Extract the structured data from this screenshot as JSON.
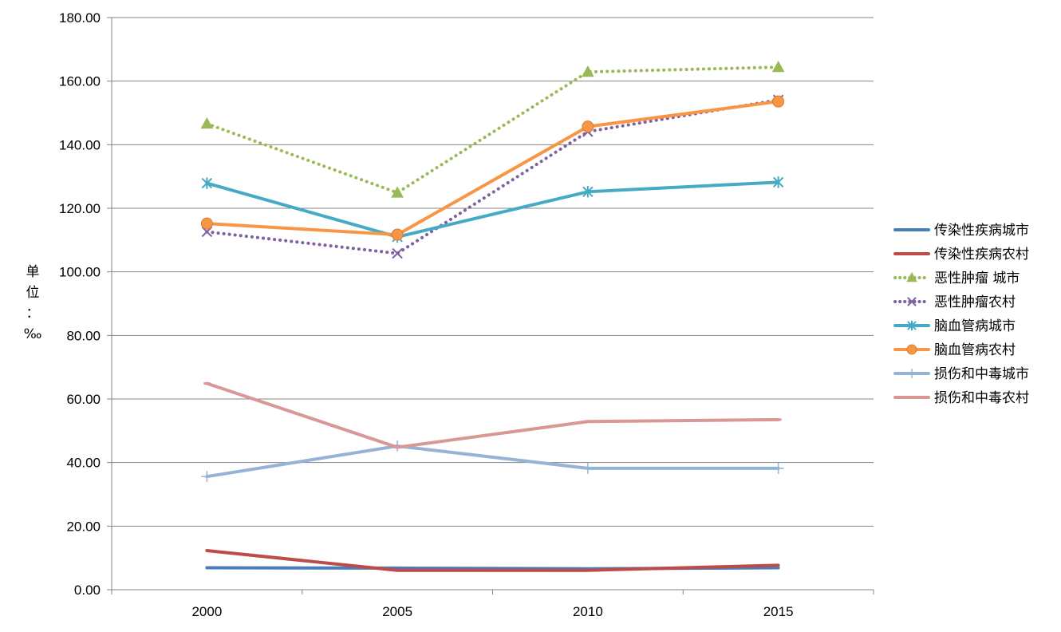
{
  "chart_data": {
    "type": "line",
    "title": "",
    "xlabel": "",
    "ylabel": "单位：‰",
    "ylabel_chars": [
      "单",
      "位",
      "：",
      "‰"
    ],
    "categories": [
      "2000",
      "2005",
      "2010",
      "2015"
    ],
    "ylim": [
      0,
      180
    ],
    "y_ticks": [
      "0.00",
      "20.00",
      "40.00",
      "60.00",
      "80.00",
      "100.00",
      "120.00",
      "140.00",
      "160.00",
      "180.00"
    ],
    "grid": true,
    "legend_position": "right",
    "series": [
      {
        "name": "传染性疾病城市",
        "values": [
          6.9,
          6.8,
          6.6,
          6.9
        ],
        "color": "#4a7ebb",
        "dash": "solid",
        "marker": "none"
      },
      {
        "name": "传染性疾病农村",
        "values": [
          12.3,
          6.1,
          6.1,
          7.7
        ],
        "color": "#be4b48",
        "dash": "solid",
        "marker": "none"
      },
      {
        "name": "恶性肿瘤 城市",
        "values": [
          146.6,
          124.9,
          162.9,
          164.4
        ],
        "color": "#98b954",
        "dash": "dotted",
        "marker": "triangle"
      },
      {
        "name": "恶性肿瘤农村",
        "values": [
          112.6,
          105.8,
          144.1,
          154.1
        ],
        "color": "#7d60a0",
        "dash": "dotted",
        "marker": "x"
      },
      {
        "name": "脑血管病城市",
        "values": [
          127.9,
          111.0,
          125.2,
          128.2
        ],
        "color": "#46aac5",
        "dash": "solid",
        "marker": "star"
      },
      {
        "name": "脑血管病农村",
        "values": [
          115.2,
          111.7,
          145.7,
          153.6
        ],
        "color": "#f79646",
        "dash": "solid",
        "marker": "circle"
      },
      {
        "name": "损伤和中毒城市",
        "values": [
          35.6,
          45.2,
          38.2,
          38.2
        ],
        "color": "#95b3d7",
        "dash": "solid",
        "marker": "plus"
      },
      {
        "name": "损伤和中毒农村",
        "values": [
          64.9,
          44.8,
          52.9,
          53.5
        ],
        "color": "#d99795",
        "dash": "solid",
        "marker": "dash"
      }
    ]
  }
}
